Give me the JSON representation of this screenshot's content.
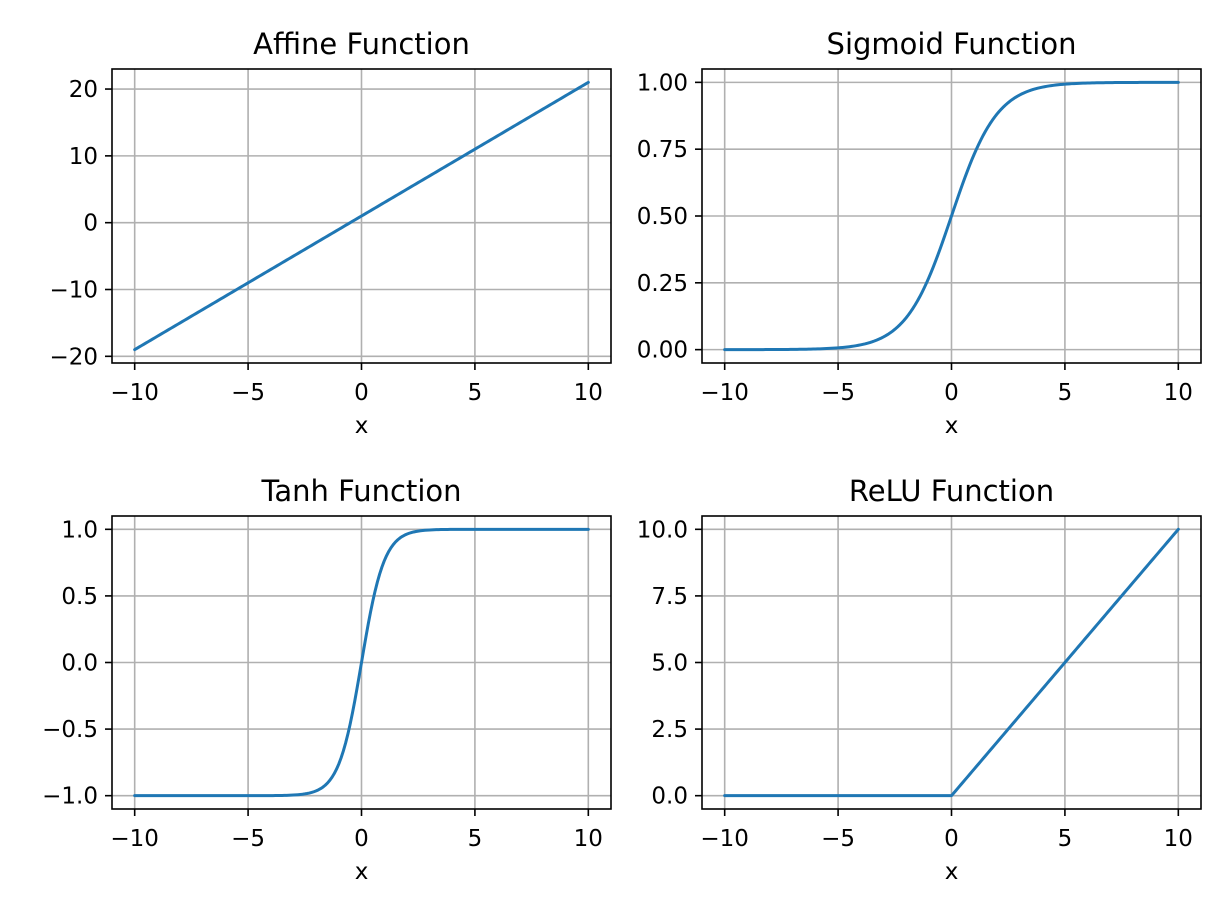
{
  "chart_data": [
    {
      "type": "line",
      "title": "Affine Function",
      "xlabel": "x",
      "ylabel": "",
      "xlim": [
        -11,
        11
      ],
      "ylim": [
        -21,
        23
      ],
      "grid": true,
      "color": "#1f77b4",
      "xticks": [
        -10,
        -5,
        0,
        5,
        10
      ],
      "xtick_labels": [
        "−10",
        "−5",
        "0",
        "5",
        "10"
      ],
      "yticks": [
        -20,
        -10,
        0,
        10,
        20
      ],
      "ytick_labels": [
        "−20",
        "−10",
        "0",
        "10",
        "20"
      ],
      "function": "affine",
      "x": [
        -10,
        -5,
        0,
        5,
        10
      ],
      "y": [
        -19,
        -9,
        1,
        11,
        21
      ]
    },
    {
      "type": "line",
      "title": "Sigmoid Function",
      "xlabel": "x",
      "ylabel": "",
      "xlim": [
        -11,
        11
      ],
      "ylim": [
        -0.05,
        1.05
      ],
      "grid": true,
      "color": "#1f77b4",
      "xticks": [
        -10,
        -5,
        0,
        5,
        10
      ],
      "xtick_labels": [
        "−10",
        "−5",
        "0",
        "5",
        "10"
      ],
      "yticks": [
        0,
        0.25,
        0.5,
        0.75,
        1.0
      ],
      "ytick_labels": [
        "0.00",
        "0.25",
        "0.50",
        "0.75",
        "1.00"
      ],
      "function": "sigmoid",
      "x": [
        -10,
        -5,
        -2,
        0,
        2,
        5,
        10
      ],
      "y": [
        4.54e-05,
        0.0067,
        0.119,
        0.5,
        0.881,
        0.9933,
        0.99995
      ]
    },
    {
      "type": "line",
      "title": "Tanh Function",
      "xlabel": "x",
      "ylabel": "",
      "xlim": [
        -11,
        11
      ],
      "ylim": [
        -1.1,
        1.1
      ],
      "grid": true,
      "color": "#1f77b4",
      "xticks": [
        -10,
        -5,
        0,
        5,
        10
      ],
      "xtick_labels": [
        "−10",
        "−5",
        "0",
        "5",
        "10"
      ],
      "yticks": [
        -1.0,
        -0.5,
        0.0,
        0.5,
        1.0
      ],
      "ytick_labels": [
        "−1.0",
        "−0.5",
        "0.0",
        "0.5",
        "1.0"
      ],
      "function": "tanh",
      "x": [
        -10,
        -2,
        -1,
        0,
        1,
        2,
        10
      ],
      "y": [
        -1.0,
        -0.964,
        -0.762,
        0.0,
        0.762,
        0.964,
        1.0
      ]
    },
    {
      "type": "line",
      "title": "ReLU Function",
      "xlabel": "x",
      "ylabel": "",
      "xlim": [
        -11,
        11
      ],
      "ylim": [
        -0.5,
        10.5
      ],
      "grid": true,
      "color": "#1f77b4",
      "xticks": [
        -10,
        -5,
        0,
        5,
        10
      ],
      "xtick_labels": [
        "−10",
        "−5",
        "0",
        "5",
        "10"
      ],
      "yticks": [
        0.0,
        2.5,
        5.0,
        7.5,
        10.0
      ],
      "ytick_labels": [
        "0.0",
        "2.5",
        "5.0",
        "7.5",
        "10.0"
      ],
      "function": "relu",
      "x": [
        -10,
        -5,
        0,
        5,
        10
      ],
      "y": [
        0,
        0,
        0,
        5,
        10
      ]
    }
  ]
}
